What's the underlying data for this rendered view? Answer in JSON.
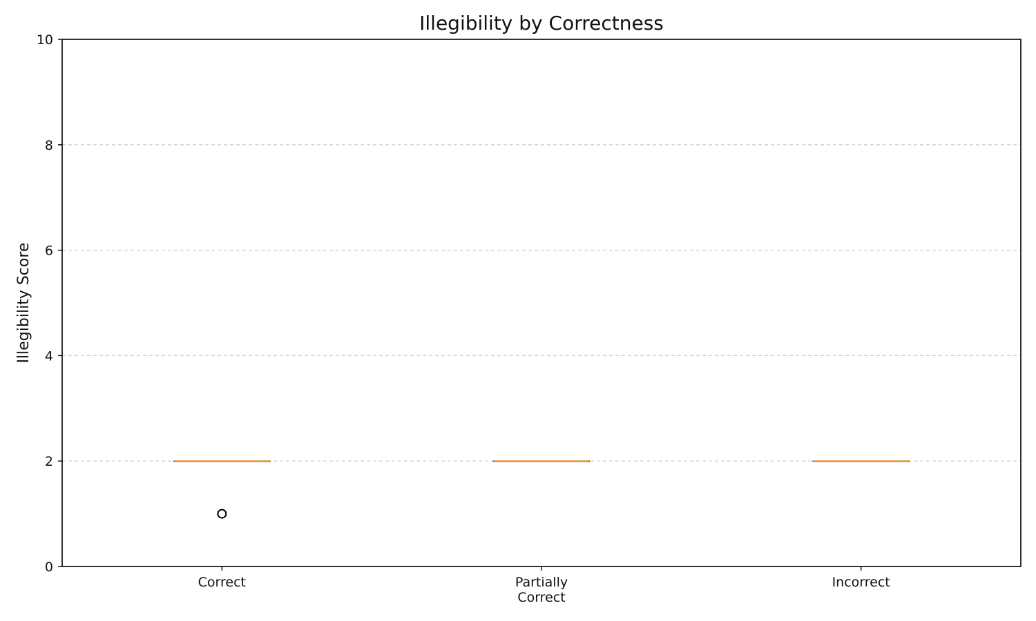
{
  "chart_data": {
    "type": "box",
    "title": "Illegibility by Correctness",
    "xlabel": "",
    "ylabel": "Illegibility Score",
    "ylim": [
      0,
      10
    ],
    "yticks": [
      0,
      2,
      4,
      6,
      8,
      10
    ],
    "grid": "y-dashed",
    "categories": [
      {
        "label": [
          "Correct"
        ],
        "q1": 2,
        "median": 2,
        "q3": 2,
        "whisker_low": 2,
        "whisker_high": 2,
        "outliers": [
          1
        ]
      },
      {
        "label": [
          "Partially",
          "Correct"
        ],
        "q1": 2,
        "median": 2,
        "q3": 2,
        "whisker_low": 2,
        "whisker_high": 2,
        "outliers": []
      },
      {
        "label": [
          "Incorrect"
        ],
        "q1": 2,
        "median": 2,
        "q3": 2,
        "whisker_low": 2,
        "whisker_high": 2,
        "outliers": []
      }
    ],
    "colors": {
      "median": "#f08a24",
      "box": "#000000",
      "grid": "#c8c8c8"
    }
  }
}
